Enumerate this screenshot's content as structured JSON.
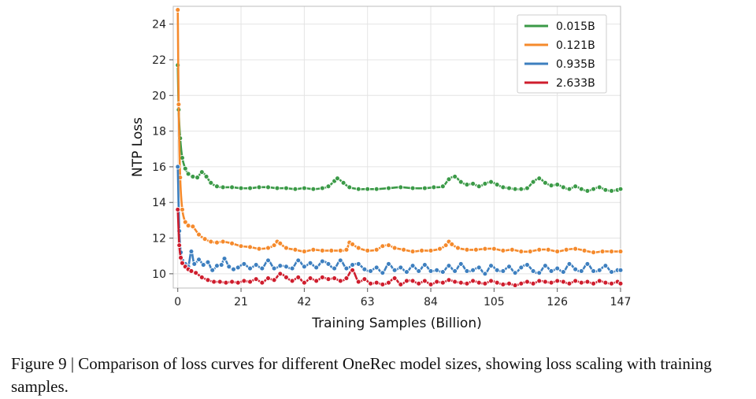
{
  "chart_data": {
    "type": "line",
    "xlabel": "Training Samples (Billion)",
    "ylabel": "NTP Loss",
    "xlim": [
      -1.5,
      147
    ],
    "ylim": [
      9.2,
      25
    ],
    "xticks": [
      0,
      21,
      42,
      63,
      84,
      105,
      126,
      147
    ],
    "yticks": [
      10,
      12,
      14,
      16,
      18,
      20,
      22,
      24
    ],
    "grid": true,
    "legend_position": "top-right",
    "series": [
      {
        "name": "0.015B",
        "color": "#3b9a47",
        "x": [
          0,
          0.3,
          0.8,
          1.5,
          2.5,
          3.5,
          5,
          6.5,
          8,
          9.5,
          11,
          13,
          15,
          18,
          21,
          24,
          27,
          30,
          33,
          36,
          39,
          42,
          45,
          48,
          50,
          52,
          53,
          55,
          57,
          60,
          63,
          66,
          70,
          74,
          78,
          82,
          85,
          88,
          90,
          92,
          94,
          96,
          98,
          100,
          102,
          104,
          106,
          108,
          110,
          112,
          114,
          116,
          118,
          120,
          122,
          124,
          126,
          128,
          130,
          132,
          134,
          136,
          138,
          140,
          142,
          144,
          146,
          147
        ],
        "values": [
          21.7,
          19.2,
          17.6,
          16.5,
          15.9,
          15.6,
          15.45,
          15.4,
          15.7,
          15.45,
          15.1,
          14.9,
          14.85,
          14.85,
          14.8,
          14.8,
          14.85,
          14.85,
          14.8,
          14.8,
          14.75,
          14.8,
          14.75,
          14.8,
          14.9,
          15.2,
          15.35,
          15.1,
          14.85,
          14.75,
          14.75,
          14.75,
          14.8,
          14.85,
          14.8,
          14.8,
          14.85,
          14.9,
          15.3,
          15.45,
          15.15,
          15.0,
          15.05,
          14.9,
          15.05,
          15.15,
          15.0,
          14.85,
          14.8,
          14.75,
          14.75,
          14.8,
          15.15,
          15.35,
          15.1,
          14.95,
          15.0,
          14.85,
          14.75,
          14.9,
          14.75,
          14.65,
          14.75,
          14.85,
          14.7,
          14.65,
          14.7,
          14.75
        ]
      },
      {
        "name": "0.121B",
        "color": "#f58a2c",
        "x": [
          0,
          0.3,
          0.8,
          1.5,
          2.5,
          3.5,
          5,
          7,
          9,
          11,
          13,
          15,
          18,
          21,
          24,
          27,
          30,
          32,
          33,
          34,
          36,
          39,
          42,
          45,
          48,
          51,
          54,
          56,
          57,
          58,
          60,
          63,
          66,
          68,
          70,
          72,
          75,
          78,
          81,
          84,
          87,
          89,
          90,
          91,
          93,
          96,
          99,
          102,
          105,
          108,
          111,
          114,
          117,
          120,
          123,
          126,
          129,
          132,
          135,
          138,
          141,
          144,
          147
        ],
        "values": [
          24.8,
          19.5,
          15.4,
          13.6,
          12.9,
          12.7,
          12.65,
          12.2,
          11.95,
          11.8,
          11.75,
          11.8,
          11.7,
          11.55,
          11.5,
          11.4,
          11.45,
          11.6,
          11.8,
          11.7,
          11.45,
          11.35,
          11.25,
          11.35,
          11.3,
          11.3,
          11.3,
          11.35,
          11.75,
          11.65,
          11.45,
          11.3,
          11.35,
          11.55,
          11.6,
          11.45,
          11.35,
          11.25,
          11.3,
          11.3,
          11.4,
          11.6,
          11.8,
          11.65,
          11.45,
          11.35,
          11.35,
          11.4,
          11.4,
          11.3,
          11.35,
          11.25,
          11.25,
          11.35,
          11.35,
          11.25,
          11.35,
          11.4,
          11.3,
          11.2,
          11.25,
          11.25,
          11.25
        ]
      },
      {
        "name": "0.935B",
        "color": "#3d7fbf",
        "x": [
          0,
          0.5,
          1,
          1.5,
          2.5,
          3.5,
          4.5,
          5.5,
          7,
          8.5,
          10,
          11.5,
          13,
          14.5,
          15.5,
          17,
          18.5,
          20,
          22,
          24,
          26,
          28,
          30,
          32,
          34,
          36,
          38,
          40,
          42,
          44,
          46,
          48,
          50,
          52,
          54,
          56,
          58,
          60,
          62,
          64,
          66,
          68,
          70,
          72,
          74,
          76,
          78,
          80,
          82,
          84,
          86,
          88,
          90,
          92,
          94,
          96,
          98,
          100,
          102,
          104,
          106,
          108,
          110,
          112,
          114,
          116,
          118,
          120,
          122,
          124,
          126,
          128,
          130,
          132,
          134,
          136,
          138,
          140,
          142,
          144,
          146,
          147
        ],
        "values": [
          16.0,
          12.4,
          11.2,
          10.75,
          10.55,
          10.4,
          11.25,
          10.55,
          10.8,
          10.5,
          10.65,
          10.2,
          10.45,
          10.5,
          10.85,
          10.4,
          10.25,
          10.35,
          10.55,
          10.3,
          10.5,
          10.3,
          10.75,
          10.3,
          10.45,
          10.4,
          10.3,
          10.75,
          10.4,
          10.6,
          10.35,
          10.7,
          10.55,
          10.3,
          10.75,
          10.3,
          10.5,
          10.55,
          10.25,
          10.15,
          10.35,
          10.05,
          10.55,
          10.2,
          10.35,
          10.1,
          10.45,
          10.15,
          10.5,
          10.15,
          10.2,
          10.1,
          10.45,
          10.15,
          10.55,
          10.15,
          10.2,
          10.35,
          10.0,
          10.45,
          10.2,
          10.15,
          10.4,
          10.05,
          10.35,
          10.5,
          10.15,
          10.05,
          10.45,
          10.15,
          10.3,
          10.1,
          10.55,
          10.25,
          10.15,
          10.55,
          10.15,
          10.2,
          10.45,
          10.1,
          10.2,
          10.2
        ]
      },
      {
        "name": "2.633B",
        "color": "#cf1d2d",
        "x": [
          0,
          0.5,
          1,
          1.5,
          2.5,
          3.5,
          4.5,
          6,
          8,
          10,
          12,
          14,
          16,
          18,
          20,
          22,
          24,
          26,
          28,
          30,
          32,
          34,
          36,
          38,
          40,
          42,
          44,
          46,
          48,
          50,
          52,
          54,
          56,
          58,
          60,
          62,
          64,
          66,
          68,
          70,
          72,
          74,
          76,
          78,
          80,
          82,
          84,
          86,
          88,
          90,
          92,
          94,
          96,
          98,
          100,
          102,
          104,
          106,
          108,
          110,
          112,
          114,
          116,
          118,
          120,
          122,
          124,
          126,
          128,
          130,
          132,
          134,
          136,
          138,
          140,
          142,
          144,
          146,
          147
        ],
        "values": [
          13.6,
          11.6,
          10.9,
          10.6,
          10.4,
          10.25,
          10.15,
          10.05,
          9.8,
          9.65,
          9.55,
          9.55,
          9.5,
          9.55,
          9.5,
          9.6,
          9.55,
          9.7,
          9.5,
          9.75,
          9.65,
          10.0,
          9.8,
          9.6,
          9.8,
          9.5,
          9.75,
          9.6,
          9.8,
          9.7,
          9.75,
          9.6,
          9.75,
          10.2,
          9.55,
          9.7,
          9.45,
          9.5,
          9.4,
          9.5,
          9.75,
          9.4,
          9.6,
          9.6,
          9.45,
          9.6,
          9.4,
          9.55,
          9.5,
          9.65,
          9.55,
          9.5,
          9.45,
          9.6,
          9.5,
          9.45,
          9.6,
          9.5,
          9.4,
          9.45,
          9.35,
          9.45,
          9.55,
          9.45,
          9.6,
          9.55,
          9.5,
          9.6,
          9.55,
          9.45,
          9.6,
          9.5,
          9.55,
          9.45,
          9.6,
          9.5,
          9.45,
          9.55,
          9.45
        ]
      }
    ]
  },
  "caption": {
    "text": "Figure 9 | Comparison of loss curves for different OneRec model sizes, showing loss scaling with training samples."
  }
}
